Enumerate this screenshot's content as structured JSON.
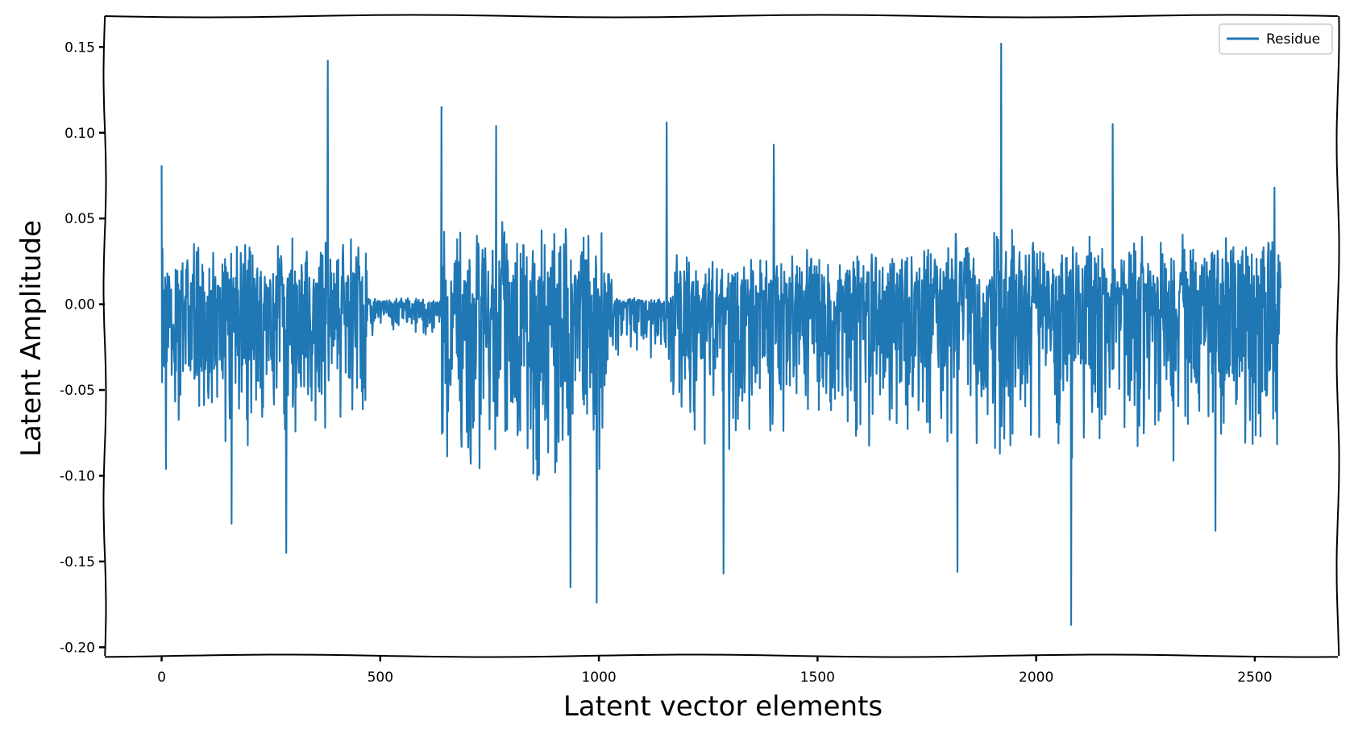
{
  "chart_data": {
    "type": "line",
    "xlabel": "Latent vector elements",
    "ylabel": "Latent Amplitude",
    "xlim": [
      -130,
      2690
    ],
    "ylim": [
      -0.205,
      0.168
    ],
    "xticks": [
      0,
      500,
      1000,
      1500,
      2000,
      2500
    ],
    "xtick_labels": [
      "0",
      "500",
      "1000",
      "1500",
      "2000",
      "2500"
    ],
    "yticks": [
      0.15,
      0.1,
      0.05,
      0.0,
      -0.05,
      -0.1,
      -0.15,
      -0.2
    ],
    "ytick_labels": [
      "0.15",
      "0.10",
      "0.05",
      "0.00",
      "-0.05",
      "-0.10",
      "-0.15",
      "-0.20"
    ],
    "grid": false,
    "legend_position": "top-right",
    "n_points": 2560,
    "colors": {
      "series": "#1f77b4",
      "axes": "#000000",
      "legend_border": "#cccccc"
    },
    "series": [
      {
        "name": "Residue",
        "segments": [
          {
            "x_start": 0,
            "x_end": 470,
            "amp_pos": 0.045,
            "amp_neg": 0.085
          },
          {
            "x_start": 470,
            "x_end": 640,
            "amp_pos": 0.004,
            "amp_neg": 0.02
          },
          {
            "x_start": 640,
            "x_end": 1030,
            "amp_pos": 0.05,
            "amp_neg": 0.11
          },
          {
            "x_start": 1030,
            "x_end": 1165,
            "amp_pos": 0.004,
            "amp_neg": 0.035
          },
          {
            "x_start": 1165,
            "x_end": 1650,
            "amp_pos": 0.035,
            "amp_neg": 0.09
          },
          {
            "x_start": 1650,
            "x_end": 2560,
            "amp_pos": 0.045,
            "amp_neg": 0.095
          }
        ],
        "peaks": [
          {
            "x": 0,
            "y": 0.081
          },
          {
            "x": 10,
            "y": -0.096
          },
          {
            "x": 160,
            "y": -0.128
          },
          {
            "x": 285,
            "y": -0.145
          },
          {
            "x": 380,
            "y": 0.142
          },
          {
            "x": 640,
            "y": 0.115
          },
          {
            "x": 765,
            "y": 0.104
          },
          {
            "x": 935,
            "y": -0.165
          },
          {
            "x": 995,
            "y": -0.174
          },
          {
            "x": 1155,
            "y": 0.106
          },
          {
            "x": 1285,
            "y": -0.157
          },
          {
            "x": 1400,
            "y": 0.093
          },
          {
            "x": 1820,
            "y": -0.156
          },
          {
            "x": 1920,
            "y": 0.152
          },
          {
            "x": 2080,
            "y": -0.187
          },
          {
            "x": 2175,
            "y": 0.105
          },
          {
            "x": 2410,
            "y": -0.132
          },
          {
            "x": 2545,
            "y": 0.068
          }
        ]
      }
    ]
  }
}
